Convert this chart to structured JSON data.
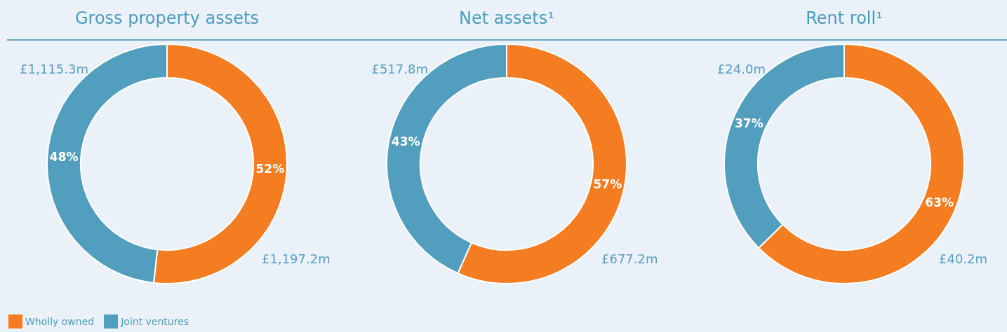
{
  "chart_data": [
    {
      "type": "donut",
      "title": "Gross property assets",
      "categories": [
        "Wholly owned",
        "Joint ventures"
      ],
      "values": [
        1197.2,
        1115.3
      ],
      "colors": [
        "#f47d22",
        "#529ebf"
      ],
      "value_labels": [
        "£1,197.2m",
        "£1,115.3m"
      ],
      "annotations": [
        {
          "text": "52%",
          "x": "Wholly owned"
        },
        {
          "text": "48%",
          "x": "Joint ventures"
        }
      ],
      "legend": "bottom left"
    },
    {
      "type": "donut",
      "title": "Net assets¹",
      "categories": [
        null,
        null
      ],
      "values": [
        677.2,
        517.8
      ],
      "colors": [
        "#f47d22",
        "#529ebf"
      ],
      "value_labels": [
        "£677.2m",
        "£517.8m"
      ],
      "annotations": [
        "57%",
        "43%"
      ]
    },
    {
      "type": "donut",
      "title": "Rent roll¹",
      "categories": [
        null,
        null
      ],
      "values": [
        40.2,
        24.0
      ],
      "colors": [
        "#f47d22",
        "#529ebf"
      ],
      "value_labels": [
        "£40.2m",
        "£24.0m"
      ],
      "annotations": [
        "63%",
        "37%"
      ]
    }
  ]
}
